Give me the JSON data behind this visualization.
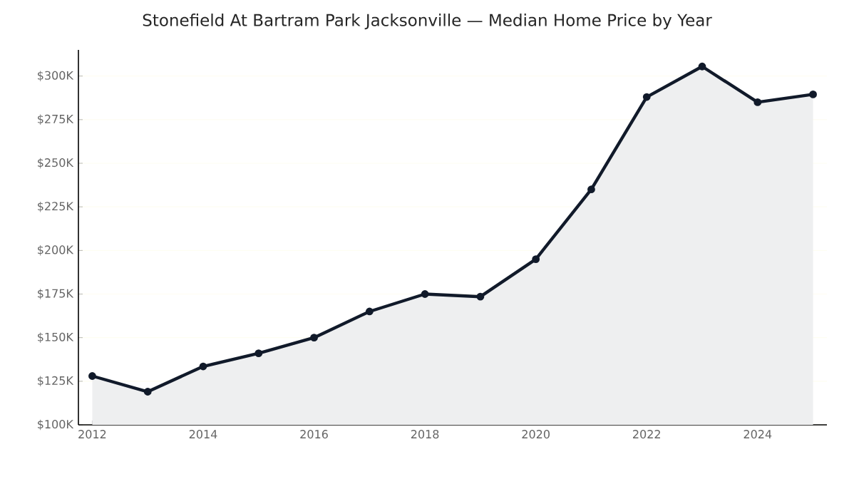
{
  "chart_data": {
    "type": "area",
    "title": "Stonefield At Bartram Park Jacksonville — Median Home Price by Year",
    "x": [
      2012,
      2013,
      2014,
      2015,
      2016,
      2017,
      2018,
      2019,
      2020,
      2021,
      2022,
      2023,
      2024,
      2025
    ],
    "series": [
      {
        "color": "#111a2a",
        "values": [
          128000,
          119000,
          133500,
          141000,
          150000,
          165000,
          175000,
          173500,
          195000,
          235000,
          288000,
          305500,
          285000,
          289500
        ]
      }
    ],
    "xlim": [
      2011.75,
      2025.25
    ],
    "xticks": [
      2012,
      2014,
      2016,
      2018,
      2020,
      2022,
      2024
    ],
    "ylim": [
      100000,
      315000
    ],
    "yticks": [
      {
        "value": 100000,
        "label": "$100K"
      },
      {
        "value": 125000,
        "label": "$125K"
      },
      {
        "value": 150000,
        "label": "$150K"
      },
      {
        "value": 175000,
        "label": "$175K"
      },
      {
        "value": 200000,
        "label": "$200K"
      },
      {
        "value": 225000,
        "label": "$225K"
      },
      {
        "value": 250000,
        "label": "$250K"
      },
      {
        "value": 275000,
        "label": "$275K"
      },
      {
        "value": 300000,
        "label": "$300K"
      }
    ],
    "grid": "y",
    "marker": "circle",
    "line_style": "solid"
  }
}
